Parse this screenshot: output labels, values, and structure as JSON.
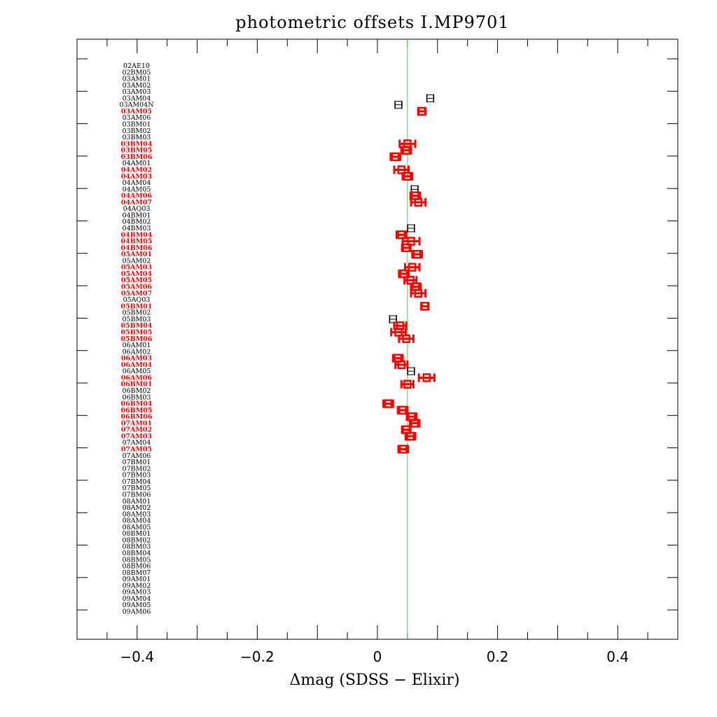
{
  "chart_data": {
    "type": "scatter",
    "title": "photometric offsets I.MP9701",
    "xlabel": "Δmag (SDSS − Elixir)",
    "ylabel": "",
    "xlim": [
      -0.5,
      0.5
    ],
    "x_ticks": [
      -0.4,
      -0.2,
      0,
      0.2,
      0.4
    ],
    "x_tick_labels": [
      "−0.4",
      "−0.2",
      "0",
      "0.2",
      "0.4"
    ],
    "reference_line": {
      "x": 0.05,
      "color": "#33dd33"
    },
    "grid": false,
    "legend": "none",
    "colors": {
      "default": "#000000",
      "flagged": "#ff0000"
    },
    "runs": [
      {
        "name": "02AE10",
        "flag": false
      },
      {
        "name": "02BM05",
        "flag": false
      },
      {
        "name": "03AM01",
        "flag": false
      },
      {
        "name": "03AM02",
        "flag": false
      },
      {
        "name": "03AM03",
        "flag": false
      },
      {
        "name": "03AM04",
        "flag": false
      },
      {
        "name": "03AM04N",
        "flag": false
      },
      {
        "name": "03AM05",
        "flag": true
      },
      {
        "name": "03AM06",
        "flag": false
      },
      {
        "name": "03BM01",
        "flag": false
      },
      {
        "name": "03BM02",
        "flag": false
      },
      {
        "name": "03BM03",
        "flag": false
      },
      {
        "name": "03BM04",
        "flag": true
      },
      {
        "name": "03BM05",
        "flag": true
      },
      {
        "name": "03BM06",
        "flag": true
      },
      {
        "name": "04AM01",
        "flag": false
      },
      {
        "name": "04AM02",
        "flag": true
      },
      {
        "name": "04AM03",
        "flag": true
      },
      {
        "name": "04AM04",
        "flag": false
      },
      {
        "name": "04AM05",
        "flag": false
      },
      {
        "name": "04AM06",
        "flag": true
      },
      {
        "name": "04AM07",
        "flag": true
      },
      {
        "name": "04AQ03",
        "flag": false
      },
      {
        "name": "04BM01",
        "flag": false
      },
      {
        "name": "04BM02",
        "flag": false
      },
      {
        "name": "04BM03",
        "flag": false
      },
      {
        "name": "04BM04",
        "flag": true
      },
      {
        "name": "04BM05",
        "flag": true
      },
      {
        "name": "04BM06",
        "flag": true
      },
      {
        "name": "05AM01",
        "flag": true
      },
      {
        "name": "05AM02",
        "flag": false
      },
      {
        "name": "05AM03",
        "flag": true
      },
      {
        "name": "05AM04",
        "flag": true
      },
      {
        "name": "05AM05",
        "flag": true
      },
      {
        "name": "05AM06",
        "flag": true
      },
      {
        "name": "05AM07",
        "flag": true
      },
      {
        "name": "05AQ03",
        "flag": false
      },
      {
        "name": "05BM01",
        "flag": true
      },
      {
        "name": "05BM02",
        "flag": false
      },
      {
        "name": "05BM03",
        "flag": false
      },
      {
        "name": "05BM04",
        "flag": true
      },
      {
        "name": "05BM05",
        "flag": true
      },
      {
        "name": "05BM06",
        "flag": true
      },
      {
        "name": "06AM01",
        "flag": false
      },
      {
        "name": "06AM02",
        "flag": false
      },
      {
        "name": "06AM03",
        "flag": true
      },
      {
        "name": "06AM04",
        "flag": true
      },
      {
        "name": "06AM05",
        "flag": false
      },
      {
        "name": "06AM06",
        "flag": true
      },
      {
        "name": "06BM01",
        "flag": true
      },
      {
        "name": "06BM02",
        "flag": false
      },
      {
        "name": "06BM03",
        "flag": false
      },
      {
        "name": "06BM04",
        "flag": true
      },
      {
        "name": "06BM05",
        "flag": true
      },
      {
        "name": "06BM06",
        "flag": true
      },
      {
        "name": "07AM01",
        "flag": true
      },
      {
        "name": "07AM02",
        "flag": true
      },
      {
        "name": "07AM03",
        "flag": true
      },
      {
        "name": "07AM04",
        "flag": false
      },
      {
        "name": "07AM05",
        "flag": true
      },
      {
        "name": "07AM06",
        "flag": false
      },
      {
        "name": "07BM01",
        "flag": false
      },
      {
        "name": "07BM02",
        "flag": false
      },
      {
        "name": "07BM03",
        "flag": false
      },
      {
        "name": "07BM04",
        "flag": false
      },
      {
        "name": "07BM05",
        "flag": false
      },
      {
        "name": "07BM06",
        "flag": false
      },
      {
        "name": "08AM01",
        "flag": false
      },
      {
        "name": "08AM02",
        "flag": false
      },
      {
        "name": "08AM03",
        "flag": false
      },
      {
        "name": "08AM04",
        "flag": false
      },
      {
        "name": "08AM05",
        "flag": false
      },
      {
        "name": "08BM01",
        "flag": false
      },
      {
        "name": "08BM02",
        "flag": false
      },
      {
        "name": "08BM03",
        "flag": false
      },
      {
        "name": "08BM04",
        "flag": false
      },
      {
        "name": "08BM05",
        "flag": false
      },
      {
        "name": "08BM06",
        "flag": false
      },
      {
        "name": "08BM07",
        "flag": false
      },
      {
        "name": "09AM01",
        "flag": false
      },
      {
        "name": "09AM02",
        "flag": false
      },
      {
        "name": "09AM03",
        "flag": false
      },
      {
        "name": "09AM04",
        "flag": false
      },
      {
        "name": "09AM05",
        "flag": false
      },
      {
        "name": "09AM06",
        "flag": false
      }
    ],
    "points": [
      {
        "run": "03AM04",
        "x": 0.088,
        "err": 0.006,
        "flag": false
      },
      {
        "run": "03AM04N",
        "x": 0.035,
        "err": 0.006,
        "flag": false
      },
      {
        "run": "03AM05",
        "x": 0.074,
        "err": 0.006,
        "flag": true
      },
      {
        "run": "03BM04",
        "x": 0.05,
        "err": 0.013,
        "flag": true
      },
      {
        "run": "03BM05",
        "x": 0.048,
        "err": 0.008,
        "flag": true
      },
      {
        "run": "03BM06",
        "x": 0.03,
        "err": 0.008,
        "flag": true
      },
      {
        "run": "04AM02",
        "x": 0.04,
        "err": 0.012,
        "flag": true
      },
      {
        "run": "04AM03",
        "x": 0.05,
        "err": 0.008,
        "flag": true
      },
      {
        "run": "04AM05",
        "x": 0.062,
        "err": 0.006,
        "flag": false
      },
      {
        "run": "04AM06",
        "x": 0.063,
        "err": 0.008,
        "flag": true
      },
      {
        "run": "04AM07",
        "x": 0.068,
        "err": 0.012,
        "flag": true
      },
      {
        "run": "04BM03",
        "x": 0.056,
        "err": 0.006,
        "flag": false
      },
      {
        "run": "04BM04",
        "x": 0.04,
        "err": 0.008,
        "flag": true
      },
      {
        "run": "04BM05",
        "x": 0.056,
        "err": 0.014,
        "flag": true
      },
      {
        "run": "04BM06",
        "x": 0.048,
        "err": 0.007,
        "flag": true
      },
      {
        "run": "05AM01",
        "x": 0.066,
        "err": 0.008,
        "flag": true
      },
      {
        "run": "05AM03",
        "x": 0.058,
        "err": 0.012,
        "flag": true
      },
      {
        "run": "05AM04",
        "x": 0.044,
        "err": 0.008,
        "flag": true
      },
      {
        "run": "05AM05",
        "x": 0.055,
        "err": 0.01,
        "flag": true
      },
      {
        "run": "05AM06",
        "x": 0.064,
        "err": 0.008,
        "flag": true
      },
      {
        "run": "05AM07",
        "x": 0.068,
        "err": 0.012,
        "flag": true
      },
      {
        "run": "05BM01",
        "x": 0.079,
        "err": 0.006,
        "flag": true
      },
      {
        "run": "05BM03",
        "x": 0.026,
        "err": 0.006,
        "flag": false
      },
      {
        "run": "05BM04",
        "x": 0.038,
        "err": 0.01,
        "flag": true
      },
      {
        "run": "05BM05",
        "x": 0.035,
        "err": 0.012,
        "flag": true
      },
      {
        "run": "05BM06",
        "x": 0.048,
        "err": 0.012,
        "flag": true
      },
      {
        "run": "06AM03",
        "x": 0.034,
        "err": 0.008,
        "flag": true
      },
      {
        "run": "06AM04",
        "x": 0.04,
        "err": 0.01,
        "flag": true
      },
      {
        "run": "06AM05",
        "x": 0.056,
        "err": 0.006,
        "flag": false
      },
      {
        "run": "06AM06",
        "x": 0.082,
        "err": 0.013,
        "flag": true
      },
      {
        "run": "06BM01",
        "x": 0.05,
        "err": 0.01,
        "flag": true
      },
      {
        "run": "06BM04",
        "x": 0.018,
        "err": 0.008,
        "flag": true
      },
      {
        "run": "06BM05",
        "x": 0.042,
        "err": 0.008,
        "flag": true
      },
      {
        "run": "06BM06",
        "x": 0.057,
        "err": 0.008,
        "flag": true
      },
      {
        "run": "07AM01",
        "x": 0.062,
        "err": 0.008,
        "flag": true
      },
      {
        "run": "07AM02",
        "x": 0.048,
        "err": 0.007,
        "flag": true
      },
      {
        "run": "07AM03",
        "x": 0.055,
        "err": 0.008,
        "flag": true
      },
      {
        "run": "07AM05",
        "x": 0.043,
        "err": 0.008,
        "flag": true
      }
    ]
  }
}
